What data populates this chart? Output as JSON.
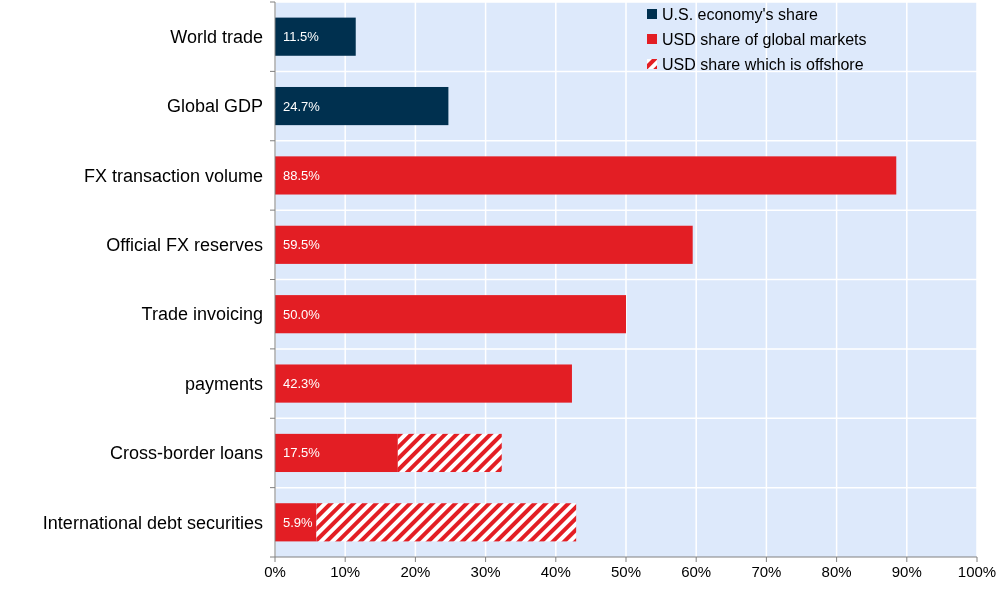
{
  "chart_data": {
    "type": "bar",
    "orientation": "horizontal",
    "stacked": true,
    "categories": [
      "World trade",
      "Global GDP",
      "FX transaction volume",
      "Official FX reserves",
      "Trade invoicing",
      "payments",
      "Cross-border loans",
      "International debt securities"
    ],
    "series": [
      {
        "name": "U.S. economy's share",
        "color": "#00304f",
        "values": [
          11.5,
          24.7,
          null,
          null,
          null,
          null,
          null,
          null
        ],
        "value_labels": [
          "11.5%",
          "24.7%",
          null,
          null,
          null,
          null,
          null,
          null
        ]
      },
      {
        "name": "USD share of global markets",
        "color": "#e31e24",
        "values": [
          null,
          null,
          88.5,
          59.5,
          50.0,
          42.3,
          17.5,
          5.9
        ],
        "value_labels": [
          null,
          null,
          "88.5%",
          "59.5%",
          "50.0%",
          "42.3%",
          "17.5%",
          "5.9%"
        ]
      },
      {
        "name": "USD share which is offshore",
        "color": "#e31e24",
        "values": [
          null,
          null,
          null,
          null,
          null,
          null,
          14.8,
          37.0
        ]
      }
    ],
    "xlim": [
      0,
      100
    ],
    "xticks": [
      {
        "value": 0,
        "label": "0%"
      },
      {
        "value": 10,
        "label": "10%"
      },
      {
        "value": 20,
        "label": "20%"
      },
      {
        "value": 30,
        "label": "30%"
      },
      {
        "value": 40,
        "label": "40%"
      },
      {
        "value": 50,
        "label": "50%"
      },
      {
        "value": 60,
        "label": "60%"
      },
      {
        "value": 70,
        "label": "70%"
      },
      {
        "value": 80,
        "label": "80%"
      },
      {
        "value": 90,
        "label": "90%"
      },
      {
        "value": 100,
        "label": "100%"
      }
    ],
    "grid": "x",
    "legend": "top right"
  }
}
